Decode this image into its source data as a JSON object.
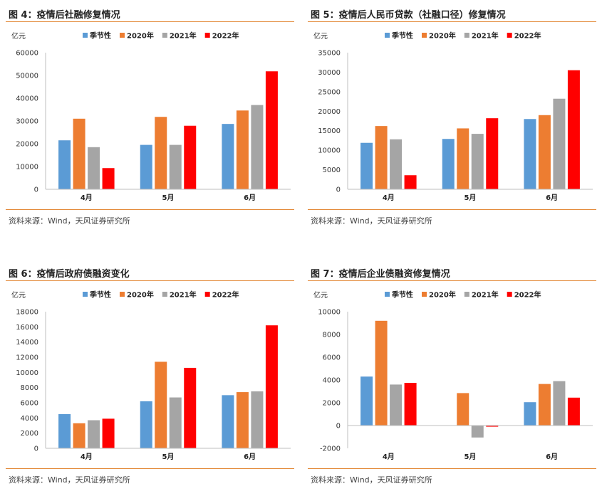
{
  "source_text": "资料来源：Wind，天风证券研究所",
  "colors": {
    "seasonal": "#5B9BD5",
    "y2020": "#ED7D31",
    "y2021": "#A5A5A5",
    "y2022": "#FF0000",
    "rule": "#E38B3B"
  },
  "chart_data": [
    {
      "type": "bar",
      "title": "图 4：疫情后社融修复情况",
      "unit_label": "亿元",
      "categories": [
        "4月",
        "5月",
        "6月"
      ],
      "ylim": [
        0,
        60000
      ],
      "yticks": [
        "0",
        "10000",
        "20000",
        "30000",
        "40000",
        "50000",
        "60000"
      ],
      "series": [
        {
          "name": "季节性",
          "color": "#5B9BD5",
          "values": [
            21500,
            19500,
            28700
          ]
        },
        {
          "name": "2020年",
          "color": "#ED7D31",
          "values": [
            31000,
            31800,
            34600
          ]
        },
        {
          "name": "2021年",
          "color": "#A5A5A5",
          "values": [
            18500,
            19500,
            37000
          ]
        },
        {
          "name": "2022年",
          "color": "#FF0000",
          "values": [
            9300,
            27900,
            51800
          ]
        }
      ]
    },
    {
      "type": "bar",
      "title": "图 5：疫情后人民币贷款（社融口径）修复情况",
      "unit_label": "亿元",
      "categories": [
        "4月",
        "5月",
        "6月"
      ],
      "ylim": [
        0,
        35000
      ],
      "yticks": [
        "0",
        "5000",
        "10000",
        "15000",
        "20000",
        "25000",
        "30000",
        "35000"
      ],
      "series": [
        {
          "name": "季节性",
          "color": "#5B9BD5",
          "values": [
            11900,
            12900,
            18000
          ]
        },
        {
          "name": "2020年",
          "color": "#ED7D31",
          "values": [
            16200,
            15600,
            19000
          ]
        },
        {
          "name": "2021年",
          "color": "#A5A5A5",
          "values": [
            12800,
            14200,
            23200
          ]
        },
        {
          "name": "2022年",
          "color": "#FF0000",
          "values": [
            3600,
            18200,
            30500
          ]
        }
      ]
    },
    {
      "type": "bar",
      "title": "图 6：疫情后政府债融资变化",
      "unit_label": "亿元",
      "categories": [
        "4月",
        "5月",
        "6月"
      ],
      "ylim": [
        0,
        18000
      ],
      "yticks": [
        "0",
        "2000",
        "4000",
        "6000",
        "8000",
        "10000",
        "12000",
        "14000",
        "16000",
        "18000"
      ],
      "series": [
        {
          "name": "季节性",
          "color": "#5B9BD5",
          "values": [
            4500,
            6200,
            7000
          ]
        },
        {
          "name": "2020年",
          "color": "#ED7D31",
          "values": [
            3300,
            11400,
            7400
          ]
        },
        {
          "name": "2021年",
          "color": "#A5A5A5",
          "values": [
            3700,
            6700,
            7500
          ]
        },
        {
          "name": "2022年",
          "color": "#FF0000",
          "values": [
            3900,
            10600,
            16200
          ]
        }
      ]
    },
    {
      "type": "bar",
      "title": "图 7：疫情后企业债融资修复情况",
      "unit_label": "亿元",
      "categories": [
        "4月",
        "5月",
        "6月"
      ],
      "ylim": [
        -2000,
        10000
      ],
      "yticks": [
        "-2000",
        "0",
        "2000",
        "4000",
        "6000",
        "8000",
        "10000"
      ],
      "series": [
        {
          "name": "季节性",
          "color": "#5B9BD5",
          "values": [
            4300,
            0,
            2050
          ]
        },
        {
          "name": "2020年",
          "color": "#ED7D31",
          "values": [
            9200,
            2850,
            3650
          ]
        },
        {
          "name": "2021年",
          "color": "#A5A5A5",
          "values": [
            3600,
            -1050,
            3900
          ]
        },
        {
          "name": "2022年",
          "color": "#FF0000",
          "values": [
            3750,
            -100,
            2450
          ]
        }
      ]
    }
  ]
}
